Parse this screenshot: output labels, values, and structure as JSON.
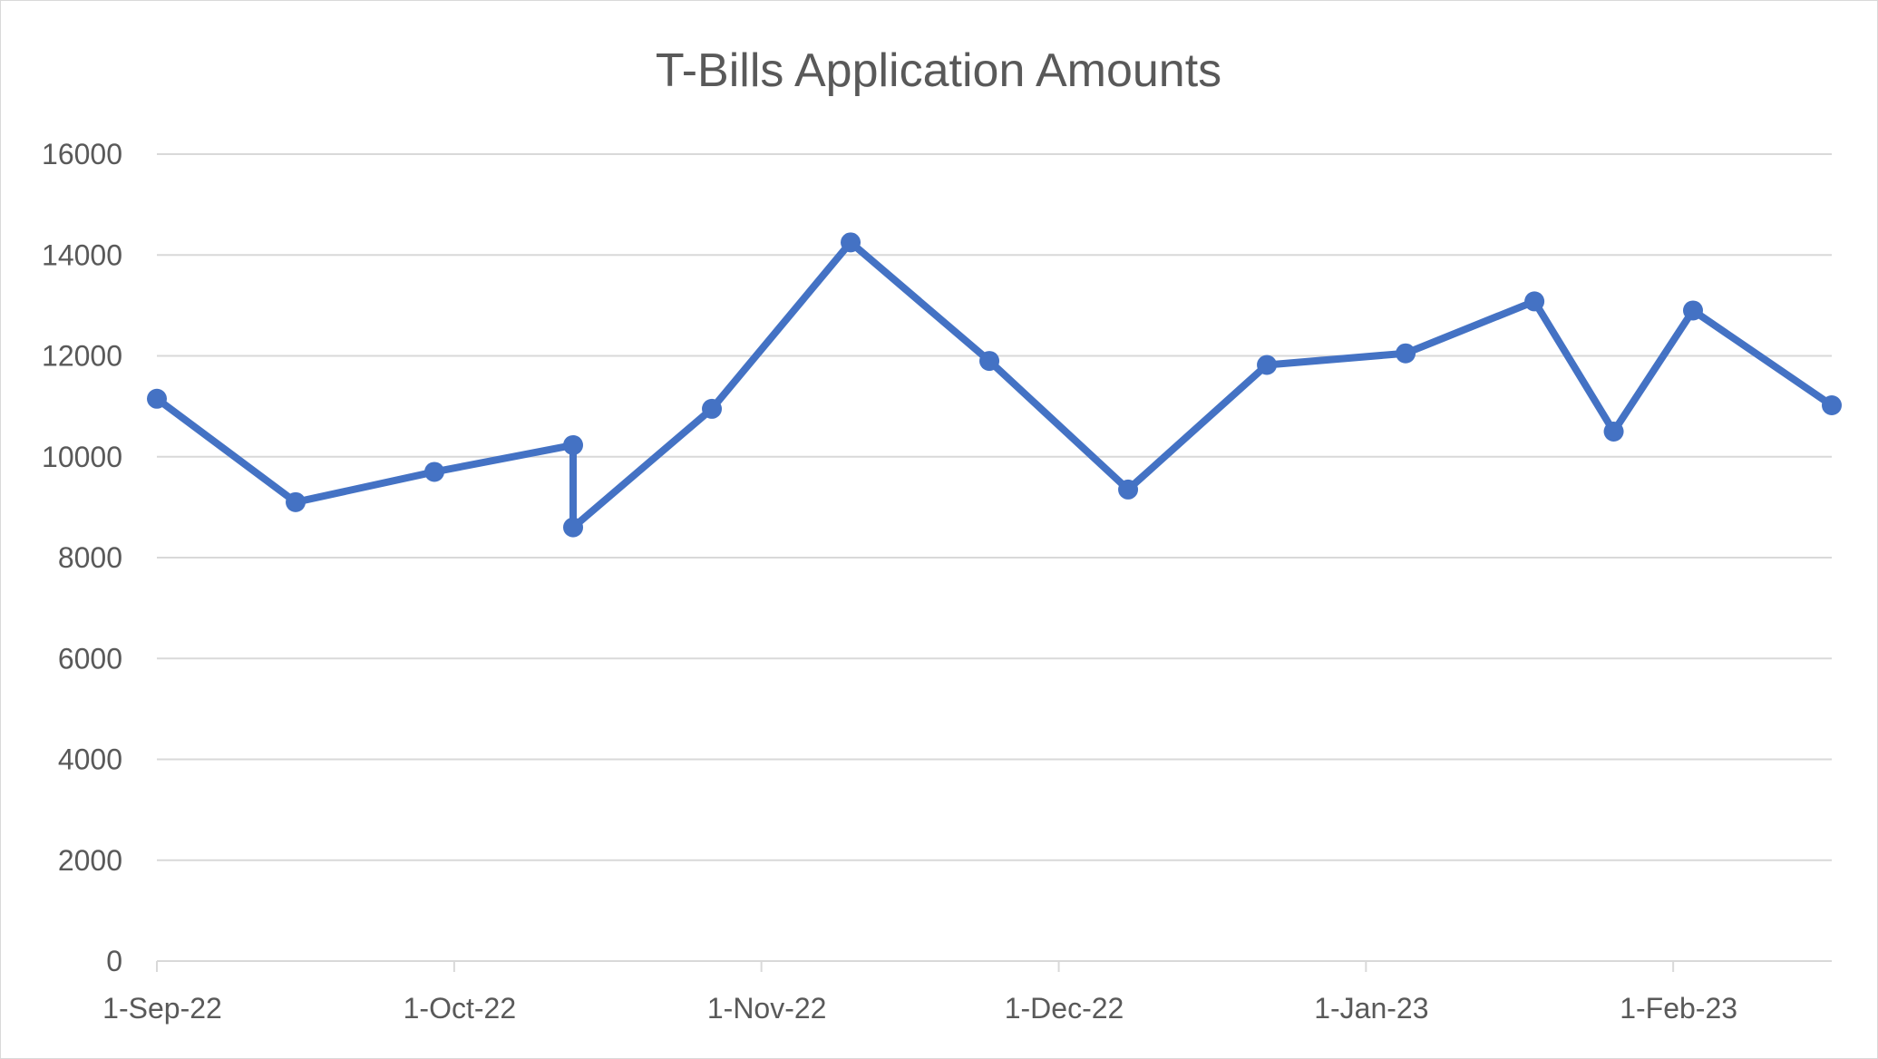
{
  "chart_data": {
    "type": "line",
    "title": "T-Bills Application Amounts",
    "xlabel": "",
    "ylabel": "",
    "ylim": [
      0,
      16000
    ],
    "yticks": [
      0,
      2000,
      4000,
      6000,
      8000,
      10000,
      12000,
      14000,
      16000
    ],
    "xlim": [
      "2022-09-01",
      "2023-02-17"
    ],
    "xticks": [
      {
        "date": "2022-09-01",
        "label": "1-Sep-22"
      },
      {
        "date": "2022-10-01",
        "label": "1-Oct-22"
      },
      {
        "date": "2022-11-01",
        "label": "1-Nov-22"
      },
      {
        "date": "2022-12-01",
        "label": "1-Dec-22"
      },
      {
        "date": "2023-01-01",
        "label": "1-Jan-23"
      },
      {
        "date": "2023-02-01",
        "label": "1-Feb-23"
      }
    ],
    "grid": "horizontal",
    "legend": "none",
    "series": [
      {
        "color": "#4472c4",
        "points": [
          {
            "x": "2022-09-01",
            "y": 11150
          },
          {
            "x": "2022-09-15",
            "y": 9100
          },
          {
            "x": "2022-09-29",
            "y": 9700
          },
          {
            "x": "2022-10-13",
            "y": 10230
          },
          {
            "x": "2022-10-13",
            "y": 8600
          },
          {
            "x": "2022-10-27",
            "y": 10950
          },
          {
            "x": "2022-11-10",
            "y": 14250
          },
          {
            "x": "2022-11-24",
            "y": 11900
          },
          {
            "x": "2022-12-08",
            "y": 9350
          },
          {
            "x": "2022-12-22",
            "y": 11820
          },
          {
            "x": "2023-01-05",
            "y": 12050
          },
          {
            "x": "2023-01-18",
            "y": 13080
          },
          {
            "x": "2023-01-26",
            "y": 10500
          },
          {
            "x": "2023-02-03",
            "y": 12900
          },
          {
            "x": "2023-02-17",
            "y": 11020
          }
        ]
      }
    ]
  }
}
